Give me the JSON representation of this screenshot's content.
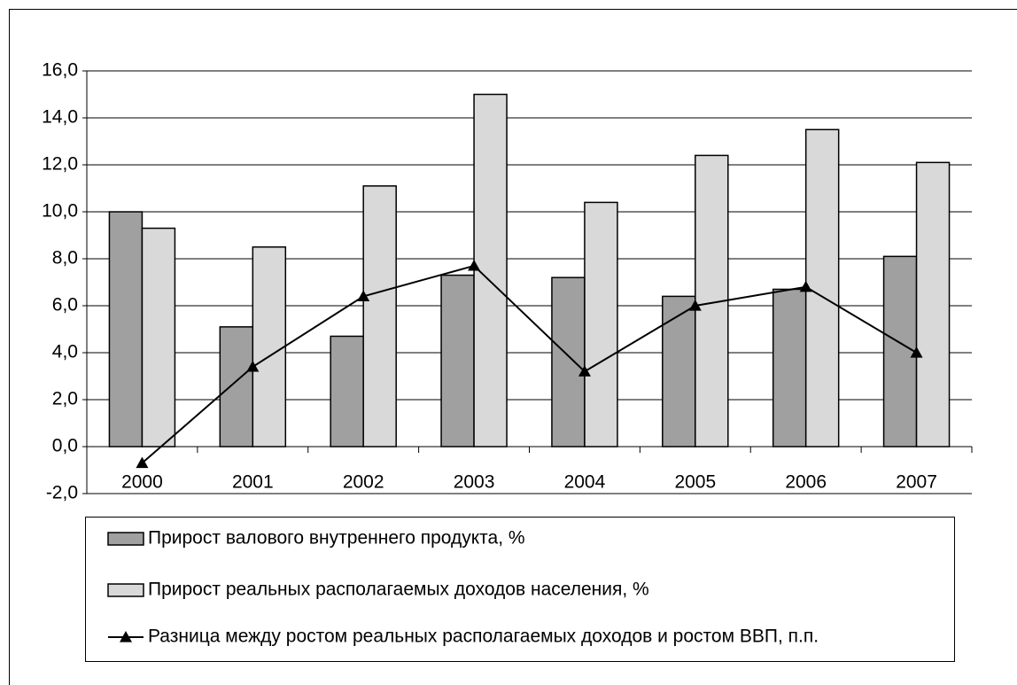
{
  "chart_data": {
    "type": "bar_line",
    "categories": [
      "2000",
      "2001",
      "2002",
      "2003",
      "2004",
      "2005",
      "2006",
      "2007"
    ],
    "series": [
      {
        "name": "Прирост валового внутреннего продукта, %",
        "type": "bar",
        "color": "#a0a0a0",
        "values": [
          10.0,
          5.1,
          4.7,
          7.3,
          7.2,
          6.4,
          6.7,
          8.1
        ]
      },
      {
        "name": "Прирост реальных располагаемых доходов населения, %",
        "type": "bar",
        "color": "#d9d9d9",
        "values": [
          9.3,
          8.5,
          11.1,
          15.0,
          10.4,
          12.4,
          13.5,
          12.1
        ]
      },
      {
        "name": "Разница между ростом реальных располагаемых доходов и ростом ВВП, п.п.",
        "type": "line",
        "color": "#000000",
        "values": [
          -0.7,
          3.4,
          6.4,
          7.7,
          3.2,
          6.0,
          6.8,
          4.0
        ]
      }
    ],
    "ylim": [
      -2,
      16
    ],
    "yticks": [
      {
        "value": -2,
        "label": "-2,0"
      },
      {
        "value": 0,
        "label": "0,0"
      },
      {
        "value": 2,
        "label": "2,0"
      },
      {
        "value": 4,
        "label": "4,0"
      },
      {
        "value": 6,
        "label": "6,0"
      },
      {
        "value": 8,
        "label": "8,0"
      },
      {
        "value": 10,
        "label": "10,0"
      },
      {
        "value": 12,
        "label": "12,0"
      },
      {
        "value": 14,
        "label": "14,0"
      },
      {
        "value": 16,
        "label": "16,0"
      }
    ],
    "grid": true,
    "legend": "bottom"
  }
}
